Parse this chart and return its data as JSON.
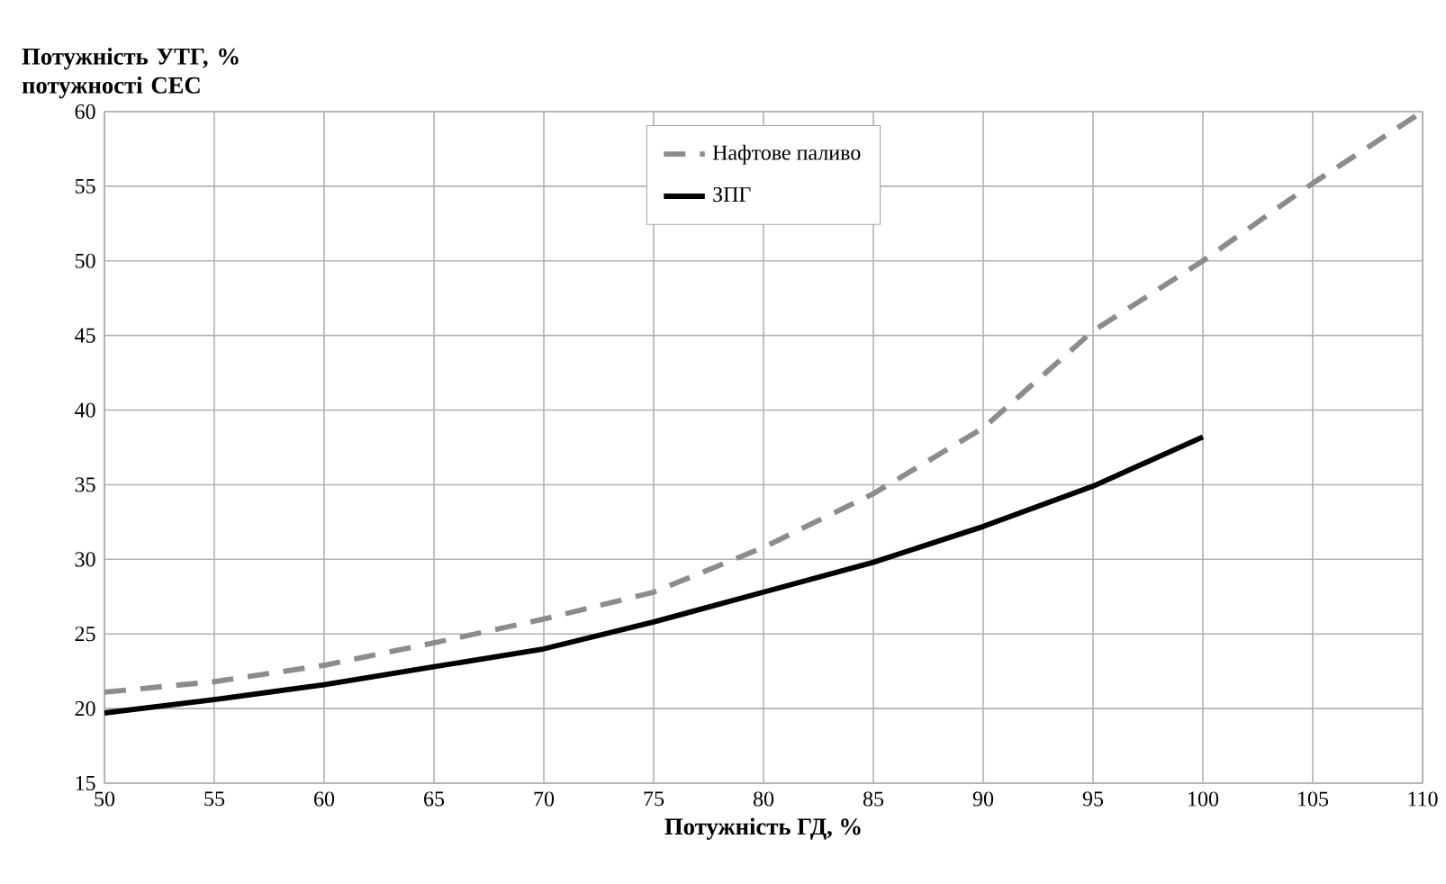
{
  "chart_data": {
    "type": "line",
    "xlabel": "Потужність ГД, %",
    "ylabel": "Потужність УТГ, % потужності СЕС",
    "xlim": [
      50,
      110
    ],
    "ylim": [
      15,
      60
    ],
    "xticks": [
      50,
      55,
      60,
      65,
      70,
      75,
      80,
      85,
      90,
      95,
      100,
      105,
      110
    ],
    "yticks": [
      15,
      20,
      25,
      30,
      35,
      40,
      45,
      50,
      55,
      60
    ],
    "grid": true,
    "legend": "top",
    "marker": "none",
    "series": [
      {
        "name": "Нафтове паливо",
        "color": "#8c8c8c",
        "line_style": "dashed",
        "x": [
          50,
          55,
          60,
          65,
          70,
          75,
          80,
          85,
          90,
          95,
          100,
          105,
          110
        ],
        "values": [
          21.1,
          21.8,
          22.9,
          24.4,
          26,
          27.8,
          30.8,
          34.4,
          38.8,
          45.3,
          50,
          55.2,
          60
        ]
      },
      {
        "name": "ЗПГ",
        "color": "#000000",
        "line_style": "solid",
        "x": [
          50,
          55,
          60,
          65,
          70,
          75,
          80,
          85,
          90,
          95,
          100
        ],
        "values": [
          19.7,
          20.6,
          21.6,
          22.8,
          24,
          25.8,
          27.8,
          29.8,
          32.2,
          34.9,
          38.2
        ]
      }
    ]
  }
}
